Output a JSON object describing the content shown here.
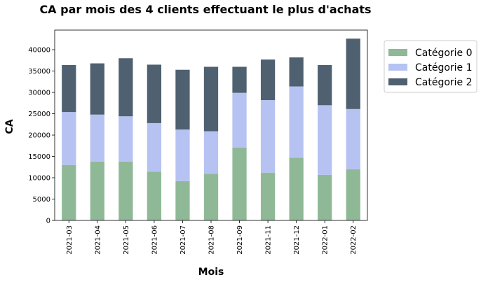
{
  "chart_data": {
    "type": "bar",
    "stacked": true,
    "title": "CA par mois des 4 clients effectuant le plus d'achats",
    "xlabel": "Mois",
    "ylabel": "CA",
    "categories": [
      "2021-03",
      "2021-04",
      "2021-05",
      "2021-06",
      "2021-07",
      "2021-08",
      "2021-09",
      "2021-11",
      "2021-12",
      "2022-01",
      "2022-02"
    ],
    "yticks": [
      0,
      5000,
      10000,
      15000,
      20000,
      25000,
      30000,
      35000,
      40000
    ],
    "ylim": [
      0,
      44600
    ],
    "grid": false,
    "legend_position": "top-right, outside plot",
    "series": [
      {
        "name": "Catégorie 0",
        "color": "#8fb996",
        "values": [
          13000,
          13800,
          13800,
          11400,
          9200,
          10900,
          17100,
          11200,
          14700,
          10700,
          12000
        ]
      },
      {
        "name": "Catégorie 1",
        "color": "#b6c2f2",
        "values": [
          12400,
          11000,
          10600,
          11400,
          12100,
          10000,
          12800,
          17000,
          16700,
          16300,
          14100
        ]
      },
      {
        "name": "Catégorie 2",
        "color": "#4f6070",
        "values": [
          11000,
          12000,
          13600,
          13700,
          14000,
          15100,
          6100,
          9500,
          6800,
          9400,
          16500
        ]
      }
    ]
  }
}
